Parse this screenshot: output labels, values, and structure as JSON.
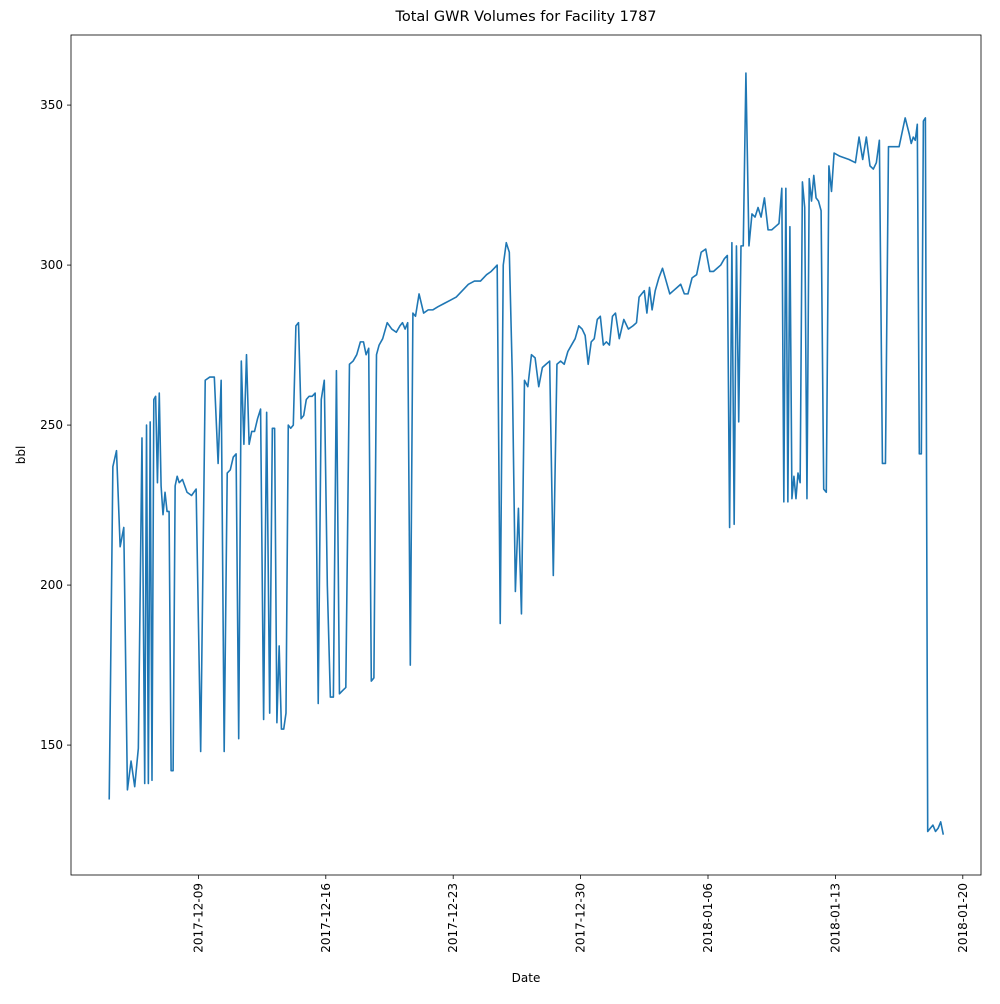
{
  "chart_data": {
    "type": "line",
    "title": "Total GWR Volumes for Facility 1787",
    "x_label": "Date",
    "y_label": "bbl",
    "color": "#1f77b4",
    "x": [
      "2017-12-04",
      "2017-12-04",
      "2017-12-04",
      "2017-12-04",
      "2017-12-04",
      "2017-12-05",
      "2017-12-05",
      "2017-12-05",
      "2017-12-05",
      "2017-12-05",
      "2017-12-06",
      "2017-12-06",
      "2017-12-06",
      "2017-12-06",
      "2017-12-06",
      "2017-12-06",
      "2017-12-06",
      "2017-12-06",
      "2017-12-06",
      "2017-12-06",
      "2017-12-07",
      "2017-12-07",
      "2017-12-07",
      "2017-12-07",
      "2017-12-07",
      "2017-12-07",
      "2017-12-07",
      "2017-12-07",
      "2017-12-07",
      "2017-12-08",
      "2017-12-08",
      "2017-12-08",
      "2017-12-08",
      "2017-12-09",
      "2017-12-09",
      "2017-12-09",
      "2017-12-09",
      "2017-12-10",
      "2017-12-10",
      "2017-12-10",
      "2017-12-10",
      "2017-12-10",
      "2017-12-10",
      "2017-12-11",
      "2017-12-11",
      "2017-12-11",
      "2017-12-11",
      "2017-12-11",
      "2017-12-11",
      "2017-12-11",
      "2017-12-12",
      "2017-12-12",
      "2017-12-12",
      "2017-12-12",
      "2017-12-12",
      "2017-12-12",
      "2017-12-13",
      "2017-12-13",
      "2017-12-13",
      "2017-12-13",
      "2017-12-13",
      "2017-12-13",
      "2017-12-13",
      "2017-12-13",
      "2017-12-14",
      "2017-12-14",
      "2017-12-14",
      "2017-12-14",
      "2017-12-14",
      "2017-12-14",
      "2017-12-14",
      "2017-12-15",
      "2017-12-15",
      "2017-12-15",
      "2017-12-15",
      "2017-12-15",
      "2017-12-15",
      "2017-12-16",
      "2017-12-16",
      "2017-12-16",
      "2017-12-16",
      "2017-12-16",
      "2017-12-16",
      "2017-12-17",
      "2017-12-17",
      "2017-12-17",
      "2017-12-17",
      "2017-12-17",
      "2017-12-18",
      "2017-12-18",
      "2017-12-18",
      "2017-12-18",
      "2017-12-18",
      "2017-12-18",
      "2017-12-18",
      "2017-12-19",
      "2017-12-19",
      "2017-12-19",
      "2017-12-19",
      "2017-12-20",
      "2017-12-20",
      "2017-12-20",
      "2017-12-20",
      "2017-12-20",
      "2017-12-20",
      "2017-12-20",
      "2017-12-21",
      "2017-12-21",
      "2017-12-21",
      "2017-12-21",
      "2017-12-22",
      "2017-12-22",
      "2017-12-22",
      "2017-12-23",
      "2017-12-23",
      "2017-12-23",
      "2017-12-24",
      "2017-12-24",
      "2017-12-24",
      "2017-12-25",
      "2017-12-25",
      "2017-12-25",
      "2017-12-25",
      "2017-12-25",
      "2017-12-25",
      "2017-12-26",
      "2017-12-26",
      "2017-12-26",
      "2017-12-26",
      "2017-12-26",
      "2017-12-26",
      "2017-12-27",
      "2017-12-27",
      "2017-12-27",
      "2017-12-27",
      "2017-12-27",
      "2017-12-28",
      "2017-12-28",
      "2017-12-28",
      "2017-12-28",
      "2017-12-28",
      "2017-12-29",
      "2017-12-29",
      "2017-12-29",
      "2017-12-29",
      "2017-12-29",
      "2017-12-30",
      "2017-12-30",
      "2017-12-30",
      "2017-12-30",
      "2017-12-30",
      "2017-12-30",
      "2017-12-31",
      "2017-12-31",
      "2017-12-31",
      "2017-12-31",
      "2017-12-31",
      "2017-12-31",
      "2018-01-01",
      "2018-01-01",
      "2018-01-01",
      "2018-01-01",
      "2018-01-02",
      "2018-01-02",
      "2018-01-02",
      "2018-01-02",
      "2018-01-02",
      "2018-01-02",
      "2018-01-02",
      "2018-01-03",
      "2018-01-03",
      "2018-01-03",
      "2018-01-03",
      "2018-01-03",
      "2018-01-04",
      "2018-01-04",
      "2018-01-04",
      "2018-01-04",
      "2018-01-04",
      "2018-01-05",
      "2018-01-05",
      "2018-01-05",
      "2018-01-05",
      "2018-01-06",
      "2018-01-06",
      "2018-01-06",
      "2018-01-06",
      "2018-01-06",
      "2018-01-07",
      "2018-01-07",
      "2018-01-07",
      "2018-01-07",
      "2018-01-07",
      "2018-01-07",
      "2018-01-07",
      "2018-01-07",
      "2018-01-08",
      "2018-01-08",
      "2018-01-08",
      "2018-01-08",
      "2018-01-08",
      "2018-01-08",
      "2018-01-09",
      "2018-01-09",
      "2018-01-09",
      "2018-01-09",
      "2018-01-09",
      "2018-01-10",
      "2018-01-10",
      "2018-01-10",
      "2018-01-10",
      "2018-01-10",
      "2018-01-10",
      "2018-01-10",
      "2018-01-10",
      "2018-01-10",
      "2018-01-11",
      "2018-01-11",
      "2018-01-11",
      "2018-01-11",
      "2018-01-11",
      "2018-01-11",
      "2018-01-11",
      "2018-01-11",
      "2018-01-12",
      "2018-01-12",
      "2018-01-12",
      "2018-01-12",
      "2018-01-12",
      "2018-01-12",
      "2018-01-12",
      "2018-01-13",
      "2018-01-13",
      "2018-01-14",
      "2018-01-14",
      "2018-01-14",
      "2018-01-14",
      "2018-01-14",
      "2018-01-15",
      "2018-01-15",
      "2018-01-15",
      "2018-01-15",
      "2018-01-15",
      "2018-01-15",
      "2018-01-16",
      "2018-01-16",
      "2018-01-16",
      "2018-01-17",
      "2018-01-17",
      "2018-01-17",
      "2018-01-17",
      "2018-01-17",
      "2018-01-17",
      "2018-01-17",
      "2018-01-17",
      "2018-01-17",
      "2018-01-18",
      "2018-01-18",
      "2018-01-18",
      "2018-01-18",
      "2018-01-18",
      "2018-01-18",
      "2018-01-18"
    ],
    "values": [
      133,
      237,
      242,
      212,
      218,
      136,
      145,
      137,
      149,
      246,
      138,
      250,
      138,
      251,
      139,
      258,
      259,
      232,
      260,
      231,
      222,
      229,
      223,
      223,
      142,
      142,
      231,
      234,
      232,
      233,
      229,
      228,
      230,
      148,
      264,
      265,
      265,
      238,
      264,
      148,
      235,
      236,
      240,
      241,
      152,
      270,
      244,
      272,
      244,
      248,
      248,
      252,
      255,
      158,
      254,
      160,
      249,
      249,
      157,
      181,
      155,
      155,
      160,
      250,
      249,
      250,
      281,
      282,
      252,
      253,
      258,
      259,
      259,
      260,
      163,
      258,
      264,
      200,
      165,
      165,
      267,
      166,
      167,
      168,
      269,
      270,
      272,
      276,
      276,
      272,
      274,
      170,
      171,
      272,
      275,
      277,
      282,
      280,
      279,
      281,
      282,
      280,
      282,
      175,
      285,
      284,
      291,
      285,
      286,
      286,
      287,
      288,
      289,
      290,
      292,
      294,
      295,
      295,
      297,
      298,
      299,
      300,
      188,
      300,
      307,
      304,
      265,
      198,
      224,
      191,
      264,
      262,
      272,
      271,
      262,
      268,
      269,
      270,
      203,
      269,
      270,
      269,
      273,
      275,
      277,
      281,
      280,
      278,
      269,
      276,
      277,
      283,
      284,
      275,
      276,
      275,
      284,
      285,
      277,
      283,
      280,
      281,
      282,
      290,
      291,
      292,
      285,
      293,
      286,
      292,
      296,
      299,
      295,
      291,
      292,
      293,
      294,
      291,
      291,
      296,
      297,
      304,
      305,
      298,
      298,
      299,
      300,
      302,
      303,
      218,
      307,
      219,
      306,
      251,
      306,
      306,
      360,
      306,
      316,
      315,
      318,
      315,
      321,
      311,
      311,
      312,
      313,
      324,
      226,
      324,
      226,
      312,
      227,
      234,
      227,
      235,
      232,
      326,
      318,
      227,
      327,
      320,
      328,
      321,
      320,
      317,
      230,
      229,
      331,
      323,
      335,
      334,
      333,
      332,
      340,
      333,
      340,
      331,
      330,
      332,
      339,
      238,
      238,
      337,
      337,
      337,
      346,
      341,
      338,
      340,
      339,
      344,
      241,
      241,
      345,
      346,
      123,
      124,
      125,
      123,
      124,
      126,
      122
    ],
    "xlim": [
      "2017-12-02",
      "2018-01-21"
    ],
    "xticks": [
      "2017-12-09",
      "2017-12-16",
      "2017-12-23",
      "2017-12-30",
      "2018-01-06",
      "2018-01-13",
      "2018-01-20"
    ],
    "ylim": [
      109.4,
      371.9
    ],
    "yticks": [
      150,
      200,
      250,
      300,
      350
    ]
  }
}
